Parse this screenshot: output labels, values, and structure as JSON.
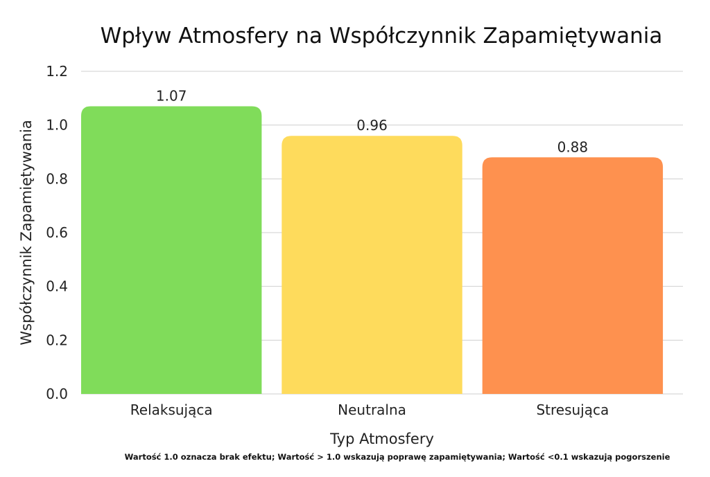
{
  "chart_data": {
    "type": "bar",
    "title": "Wpływ Atmosfery na Współczynnik Zapamiętywania",
    "xlabel": "Typ Atmosfery",
    "ylabel": "Współczynnik Zapamiętywania",
    "categories": [
      "Relaksująca",
      "Neutralna",
      "Stresująca"
    ],
    "values": [
      1.07,
      0.96,
      0.88
    ],
    "value_labels": [
      "1.07",
      "0.96",
      "0.88"
    ],
    "colors": [
      "#80dc5a",
      "#fedb5c",
      "#fe914f"
    ],
    "ylim": [
      0,
      1.2
    ],
    "yticks": [
      0.0,
      0.2,
      0.4,
      0.6,
      0.8,
      1.0,
      1.2
    ],
    "ytick_labels": [
      "0.0",
      "0.2",
      "0.4",
      "0.6",
      "0.8",
      "1.0",
      "1.2"
    ],
    "grid": true,
    "legend": "none"
  },
  "footnote": "Wartość 1.0 oznacza brak efektu; Wartość > 1.0 wskazują poprawę zapamiętywania; Wartość <0.1 wskazują pogorszenie"
}
